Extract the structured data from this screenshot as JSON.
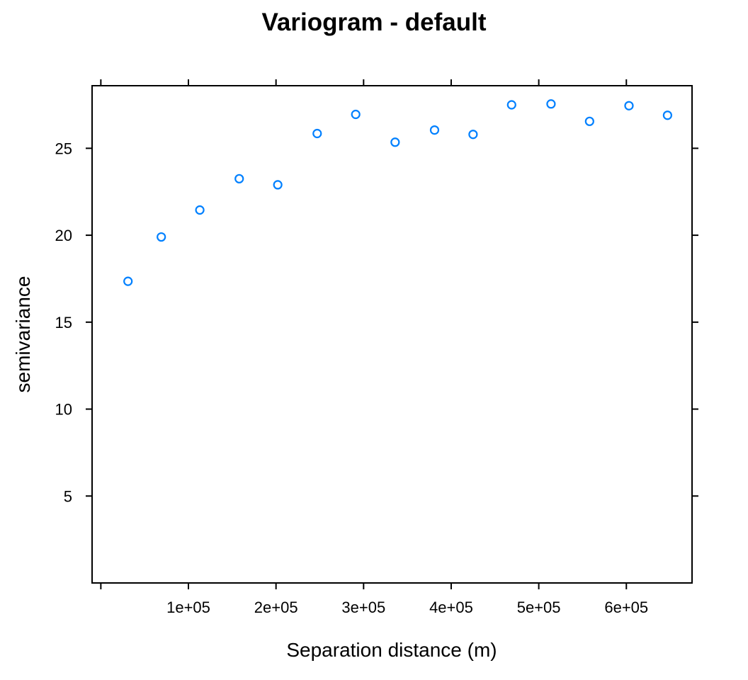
{
  "chart_data": {
    "type": "scatter",
    "title": "Variogram - default",
    "xlabel": "Separation distance (m)",
    "ylabel": "semivariance",
    "xlim": [
      -10000,
      675000
    ],
    "ylim": [
      0,
      28.6
    ],
    "x_ticks": [
      0,
      100000,
      200000,
      300000,
      400000,
      500000,
      600000
    ],
    "x_tick_labels": [
      "",
      "1e+05",
      "2e+05",
      "3e+05",
      "4e+05",
      "5e+05",
      "6e+05"
    ],
    "y_ticks": [
      5,
      10,
      15,
      20,
      25
    ],
    "y_tick_labels": [
      "5",
      "10",
      "15",
      "20",
      "25"
    ],
    "grid": false,
    "point_color": "#0080ff",
    "points": [
      {
        "x": 31000,
        "y": 17.35
      },
      {
        "x": 69000,
        "y": 19.9
      },
      {
        "x": 113000,
        "y": 21.45
      },
      {
        "x": 158000,
        "y": 23.25
      },
      {
        "x": 202000,
        "y": 22.9
      },
      {
        "x": 247000,
        "y": 25.85
      },
      {
        "x": 291000,
        "y": 26.95
      },
      {
        "x": 336000,
        "y": 25.35
      },
      {
        "x": 381000,
        "y": 26.05
      },
      {
        "x": 425000,
        "y": 25.8
      },
      {
        "x": 469000,
        "y": 27.5
      },
      {
        "x": 514000,
        "y": 27.55
      },
      {
        "x": 558000,
        "y": 26.55
      },
      {
        "x": 603000,
        "y": 27.45
      },
      {
        "x": 647000,
        "y": 26.9
      }
    ]
  }
}
